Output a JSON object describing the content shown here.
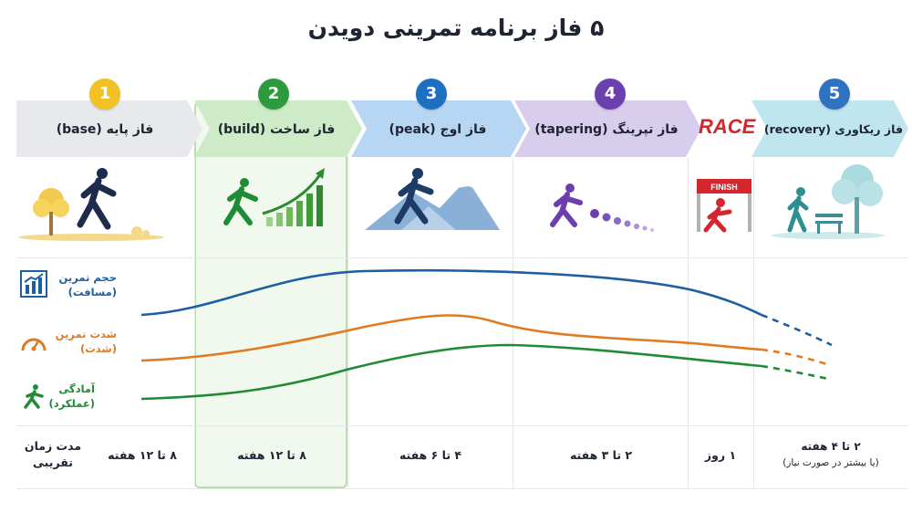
{
  "title": "۵ فاز برنامه تمرینی دویدن",
  "phases": [
    {
      "number": "1",
      "label": "فاز پایه (base)",
      "color": "#f2c225",
      "arrow": "#e8e9ec"
    },
    {
      "number": "2",
      "label": "فاز ساخت (build)",
      "color": "#2e9a3e",
      "arrow": "#cdebc6"
    },
    {
      "number": "3",
      "label": "فاز اوج (peak)",
      "color": "#1d6fc2",
      "arrow": "#b6d6f3"
    },
    {
      "number": "4",
      "label": "فاز تپرینگ (tapering)",
      "color": "#6c3fae",
      "arrow": "#d9cdee"
    },
    {
      "number": "5",
      "label": "فاز ریکاوری (recovery)",
      "color": "#1d6fc2",
      "arrow": "#bfe5ef"
    }
  ],
  "race_label": "RACE",
  "finish_label": "FINISH",
  "metrics": {
    "volume": {
      "title": "حجم تمرین",
      "subtitle": "(مسافت)",
      "color": "#1d5fa3"
    },
    "intensity": {
      "title": "شدت تمرین",
      "subtitle": "(شدت)",
      "color": "#e07b22"
    },
    "fitness": {
      "title": "آمادگی",
      "subtitle": "(عملکرد)",
      "color": "#1f8b34"
    }
  },
  "duration_label": {
    "line1": "مدت زمان",
    "line2": "تقریبی"
  },
  "durations": {
    "base": "۸ تا ۱۲ هفته",
    "build": "۸ تا ۱۲ هفته",
    "peak": "۴ تا ۶ هفته",
    "tapering": "۲ تا ۳ هفته",
    "race": "۱ روز",
    "recovery_line1": "۲ تا ۴ هفته",
    "recovery_line2": "(یا بیشتر در صورت نیاز)"
  }
}
